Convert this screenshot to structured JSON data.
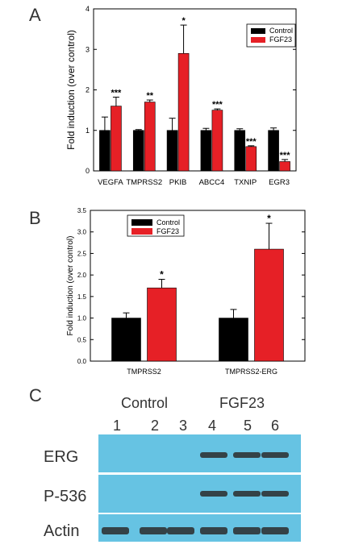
{
  "colors": {
    "control": "#000000",
    "fgf23": "#e62026",
    "blot_bg": "#66c3e3",
    "band": "#2b2b2b"
  },
  "panel_a": {
    "letter": "A",
    "ylabel": "Fold induction (over control)"
  },
  "panel_b": {
    "letter": "B",
    "ylabel": "Fold induction (over control)"
  },
  "panel_c": {
    "letter": "C",
    "control_label": "Control",
    "fgf23_label": "FGF23",
    "lanes": [
      "1",
      "2",
      "3",
      "4",
      "5",
      "6"
    ],
    "blot_labels": [
      "ERG",
      "P-536",
      "Actin"
    ],
    "bands": {
      "erg": [
        0,
        0,
        0,
        1,
        1,
        1
      ],
      "p536": [
        0,
        0,
        0,
        1,
        1,
        1
      ],
      "actin": [
        1,
        1,
        1,
        1,
        1,
        1
      ]
    }
  },
  "chart_data": [
    {
      "type": "bar",
      "panel": "A",
      "categories": [
        "VEGFA",
        "TMPRSS2",
        "PKIB",
        "ABCC4",
        "TXNIP",
        "EGR3"
      ],
      "series": [
        {
          "name": "Control",
          "values": [
            1.0,
            1.0,
            1.0,
            1.0,
            1.0,
            1.0
          ],
          "errors": [
            0.33,
            0.02,
            0.3,
            0.05,
            0.04,
            0.06
          ]
        },
        {
          "name": "FGF23",
          "values": [
            1.6,
            1.7,
            2.9,
            1.5,
            0.6,
            0.23
          ],
          "errors": [
            0.22,
            0.05,
            0.7,
            0.03,
            0.02,
            0.05
          ]
        }
      ],
      "significance": [
        "***",
        "**",
        "*",
        "***",
        "***",
        "***"
      ],
      "ylabel": "Fold induction (over control)",
      "ylim": [
        0,
        4
      ],
      "yticks": [
        "0",
        "1",
        "2",
        "3",
        "4"
      ],
      "legend_position": "top-right",
      "grid": false
    },
    {
      "type": "bar",
      "panel": "B",
      "categories": [
        "TMPRSS2",
        "TMPRSS2-ERG"
      ],
      "series": [
        {
          "name": "Control",
          "values": [
            1.0,
            1.0
          ],
          "errors": [
            0.12,
            0.2
          ]
        },
        {
          "name": "FGF23",
          "values": [
            1.7,
            2.6
          ],
          "errors": [
            0.2,
            0.6
          ]
        }
      ],
      "significance": [
        "*",
        "*"
      ],
      "ylabel": "Fold induction (over control)",
      "ylim": [
        0,
        3.5
      ],
      "yticks": [
        "0.0",
        "0.5",
        "1.0",
        "1.5",
        "2.0",
        "2.5",
        "3.0",
        "3.5"
      ],
      "legend_position": "top-left",
      "grid": false
    }
  ]
}
